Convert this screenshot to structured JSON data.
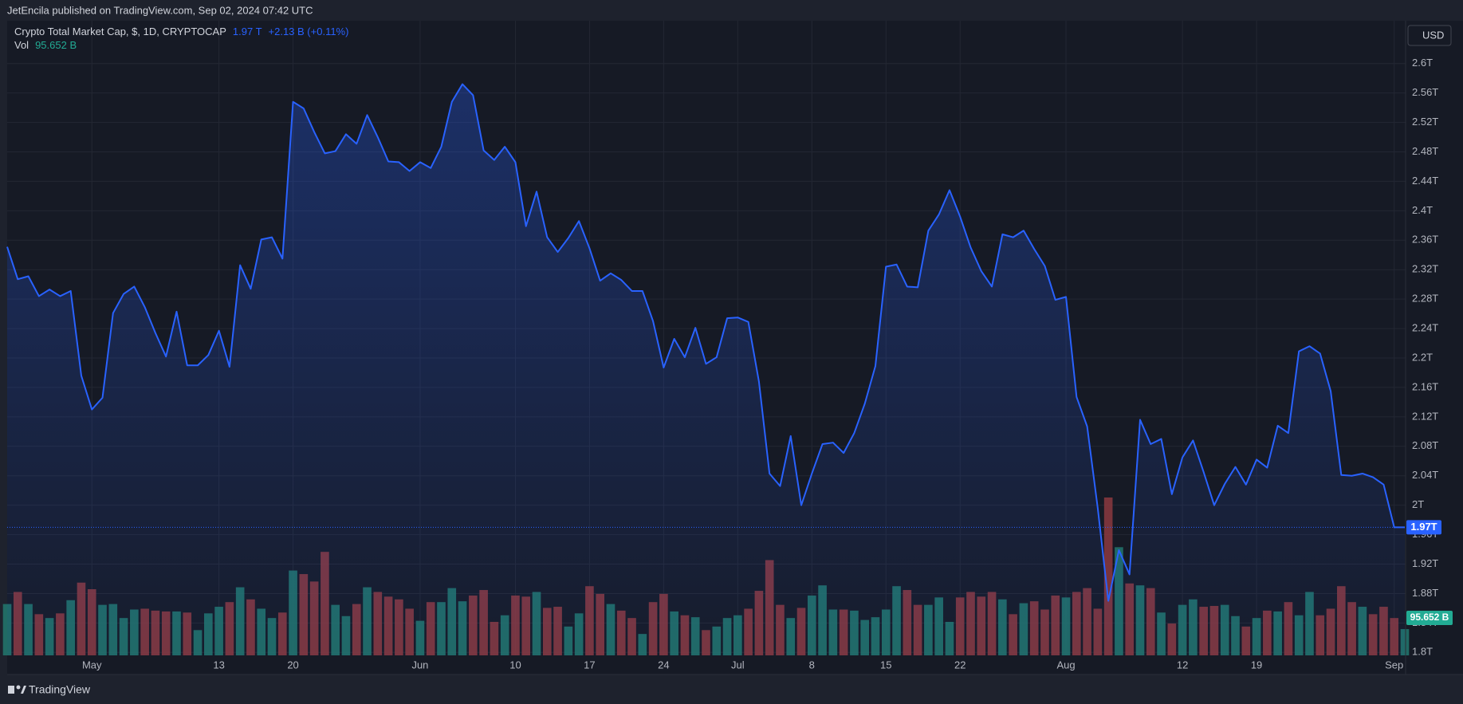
{
  "header": {
    "text": "JetEncila published on TradingView.com, Sep 02, 2024 07:42 UTC"
  },
  "footer": {
    "brand": "TradingView"
  },
  "chart_data": {
    "type": "area",
    "title": "Crypto Total Market Cap, $, 1D, CRYPTOCAP",
    "last_value_text": "1.97 T",
    "change_text": "+2.13 B (+0.11%)",
    "currency": "USD",
    "categories": [
      null,
      null,
      null,
      null,
      null,
      null,
      null,
      null,
      "May",
      null,
      null,
      null,
      null,
      null,
      null,
      null,
      null,
      null,
      null,
      null,
      "13",
      null,
      null,
      null,
      null,
      null,
      null,
      "20",
      null,
      null,
      null,
      null,
      null,
      null,
      null,
      null,
      null,
      null,
      null,
      "Jun",
      null,
      null,
      null,
      null,
      null,
      null,
      null,
      null,
      "10",
      null,
      null,
      null,
      null,
      null,
      null,
      "17",
      null,
      null,
      null,
      null,
      null,
      null,
      "24",
      null,
      null,
      null,
      null,
      null,
      null,
      "Jul",
      null,
      null,
      null,
      null,
      null,
      null,
      "8",
      null,
      null,
      null,
      null,
      null,
      null,
      "15",
      null,
      null,
      null,
      null,
      null,
      null,
      "22",
      null,
      null,
      null,
      null,
      null,
      null,
      null,
      null,
      null,
      "Aug",
      null,
      null,
      null,
      null,
      null,
      null,
      null,
      null,
      null,
      null,
      "12",
      null,
      null,
      null,
      null,
      null,
      null,
      "19",
      null,
      null,
      null,
      null,
      null,
      null,
      null,
      null,
      null,
      null,
      null,
      null,
      "Sep",
      null
    ],
    "series": [
      {
        "color": "#2962ff",
        "last_label": "1.97T",
        "values": [
          2.351,
          2.307,
          2.311,
          2.284,
          2.293,
          2.284,
          2.291,
          2.176,
          2.13,
          2.146,
          2.261,
          2.287,
          2.297,
          2.269,
          2.234,
          2.202,
          2.263,
          2.19,
          2.19,
          2.204,
          2.237,
          2.188,
          2.326,
          2.294,
          2.361,
          2.364,
          2.335,
          2.548,
          2.539,
          2.507,
          2.478,
          2.481,
          2.504,
          2.491,
          2.53,
          2.5,
          2.467,
          2.466,
          2.454,
          2.466,
          2.458,
          2.487,
          2.548,
          2.572,
          2.557,
          2.482,
          2.469,
          2.487,
          2.466,
          2.379,
          2.426,
          2.364,
          2.344,
          2.363,
          2.386,
          2.349,
          2.305,
          2.315,
          2.306,
          2.291,
          2.291,
          2.25,
          2.187,
          2.226,
          2.201,
          2.241,
          2.192,
          2.201,
          2.254,
          2.255,
          2.249,
          2.168,
          2.043,
          2.026,
          2.094,
          2.0,
          2.043,
          2.083,
          2.085,
          2.071,
          2.098,
          2.138,
          2.189,
          2.324,
          2.327,
          2.297,
          2.296,
          2.373,
          2.395,
          2.428,
          2.392,
          2.35,
          2.318,
          2.297,
          2.368,
          2.364,
          2.373,
          2.348,
          2.325,
          2.279,
          2.283,
          2.147,
          2.107,
          1.996,
          1.87,
          1.939,
          1.906,
          2.116,
          2.083,
          2.09,
          2.015,
          2.065,
          2.088,
          2.045,
          2.0,
          2.029,
          2.052,
          2.028,
          2.062,
          2.051,
          2.108,
          2.098,
          2.209,
          2.216,
          2.206,
          2.155,
          2.041,
          2.04,
          2.043,
          2.038,
          2.028,
          1.97,
          1.97
        ]
      },
      {
        "name": "Vol",
        "up_color": "#22786e",
        "down_color": "#8c3a40",
        "last_label": "95.652 B",
        "values": [
          187,
          231,
          187,
          150,
          136,
          153,
          201,
          265,
          241,
          184,
          187,
          136,
          167,
          170,
          163,
          160,
          160,
          156,
          92,
          153,
          177,
          194,
          248,
          204,
          170,
          136,
          156,
          309,
          296,
          269,
          377,
          184,
          143,
          187,
          248,
          231,
          214,
          204,
          170,
          126,
          194,
          194,
          245,
          197,
          218,
          238,
          122,
          146,
          218,
          214,
          231,
          173,
          177,
          105,
          153,
          252,
          224,
          187,
          163,
          136,
          78,
          194,
          224,
          160,
          146,
          139,
          92,
          105,
          136,
          146,
          170,
          235,
          347,
          184,
          136,
          173,
          218,
          255,
          167,
          167,
          163,
          129,
          139,
          167,
          252,
          238,
          184,
          184,
          211,
          122,
          211,
          231,
          214,
          231,
          204,
          150,
          190,
          197,
          167,
          218,
          211,
          231,
          245,
          170,
          575,
          394,
          262,
          255,
          245,
          156,
          116,
          184,
          204,
          177,
          180,
          184,
          143,
          105,
          136,
          163,
          160,
          194,
          146,
          231,
          146,
          170,
          252,
          194,
          177,
          150,
          177,
          136,
          95.652
        ]
      }
    ],
    "ylim": [
      1.796,
      2.656
    ],
    "yticks": [
      {
        "value": 1.8,
        "label": "1.8T"
      },
      {
        "value": 1.84,
        "label": "1.84T"
      },
      {
        "value": 1.88,
        "label": "1.88T"
      },
      {
        "value": 1.92,
        "label": "1.92T"
      },
      {
        "value": 1.96,
        "label": "1.96T"
      },
      {
        "value": 2,
        "label": "2T"
      },
      {
        "value": 2.04,
        "label": "2.04T"
      },
      {
        "value": 2.08,
        "label": "2.08T"
      },
      {
        "value": 2.12,
        "label": "2.12T"
      },
      {
        "value": 2.16,
        "label": "2.16T"
      },
      {
        "value": 2.2,
        "label": "2.2T"
      },
      {
        "value": 2.24,
        "label": "2.24T"
      },
      {
        "value": 2.28,
        "label": "2.28T"
      },
      {
        "value": 2.32,
        "label": "2.32T"
      },
      {
        "value": 2.36,
        "label": "2.36T"
      },
      {
        "value": 2.4,
        "label": "2.4T"
      },
      {
        "value": 2.44,
        "label": "2.44T"
      },
      {
        "value": 2.48,
        "label": "2.48T"
      },
      {
        "value": 2.52,
        "label": "2.52T"
      },
      {
        "value": 2.56,
        "label": "2.56T"
      },
      {
        "value": 2.6,
        "label": "2.6T"
      }
    ],
    "grid": true
  }
}
